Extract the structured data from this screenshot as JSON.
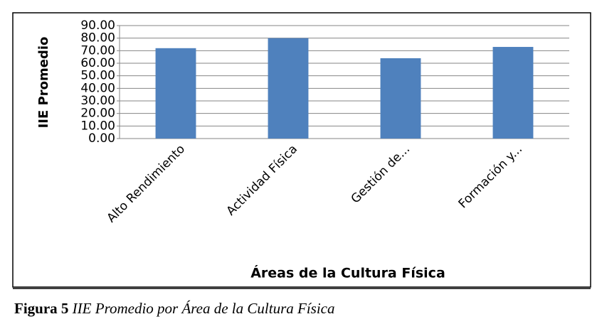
{
  "chart_data": {
    "type": "bar",
    "x_label": "Áreas de la Cultura Física",
    "y_label": "IIE Promedio",
    "categories": [
      "Alto Rendimiento",
      "Actividad Física",
      "Gestión de...",
      "Formación y..."
    ],
    "values": [
      72,
      80,
      64,
      73
    ],
    "color": "#4f81bd",
    "ylim": [
      0,
      90
    ],
    "yticks": [
      {
        "value": 0,
        "label": "0.00"
      },
      {
        "value": 10,
        "label": "10.00"
      },
      {
        "value": 20,
        "label": "20.00"
      },
      {
        "value": 30,
        "label": "30.00"
      },
      {
        "value": 40,
        "label": "40.00"
      },
      {
        "value": 50,
        "label": "50.00"
      },
      {
        "value": 60,
        "label": "60.00"
      },
      {
        "value": 70,
        "label": "70.00"
      },
      {
        "value": 80,
        "label": "80.00"
      },
      {
        "value": 90,
        "label": "90.00"
      }
    ],
    "grid": true
  },
  "caption": {
    "label": "Figura 5",
    "text": "IIE Promedio por Área de la Cultura Física"
  }
}
